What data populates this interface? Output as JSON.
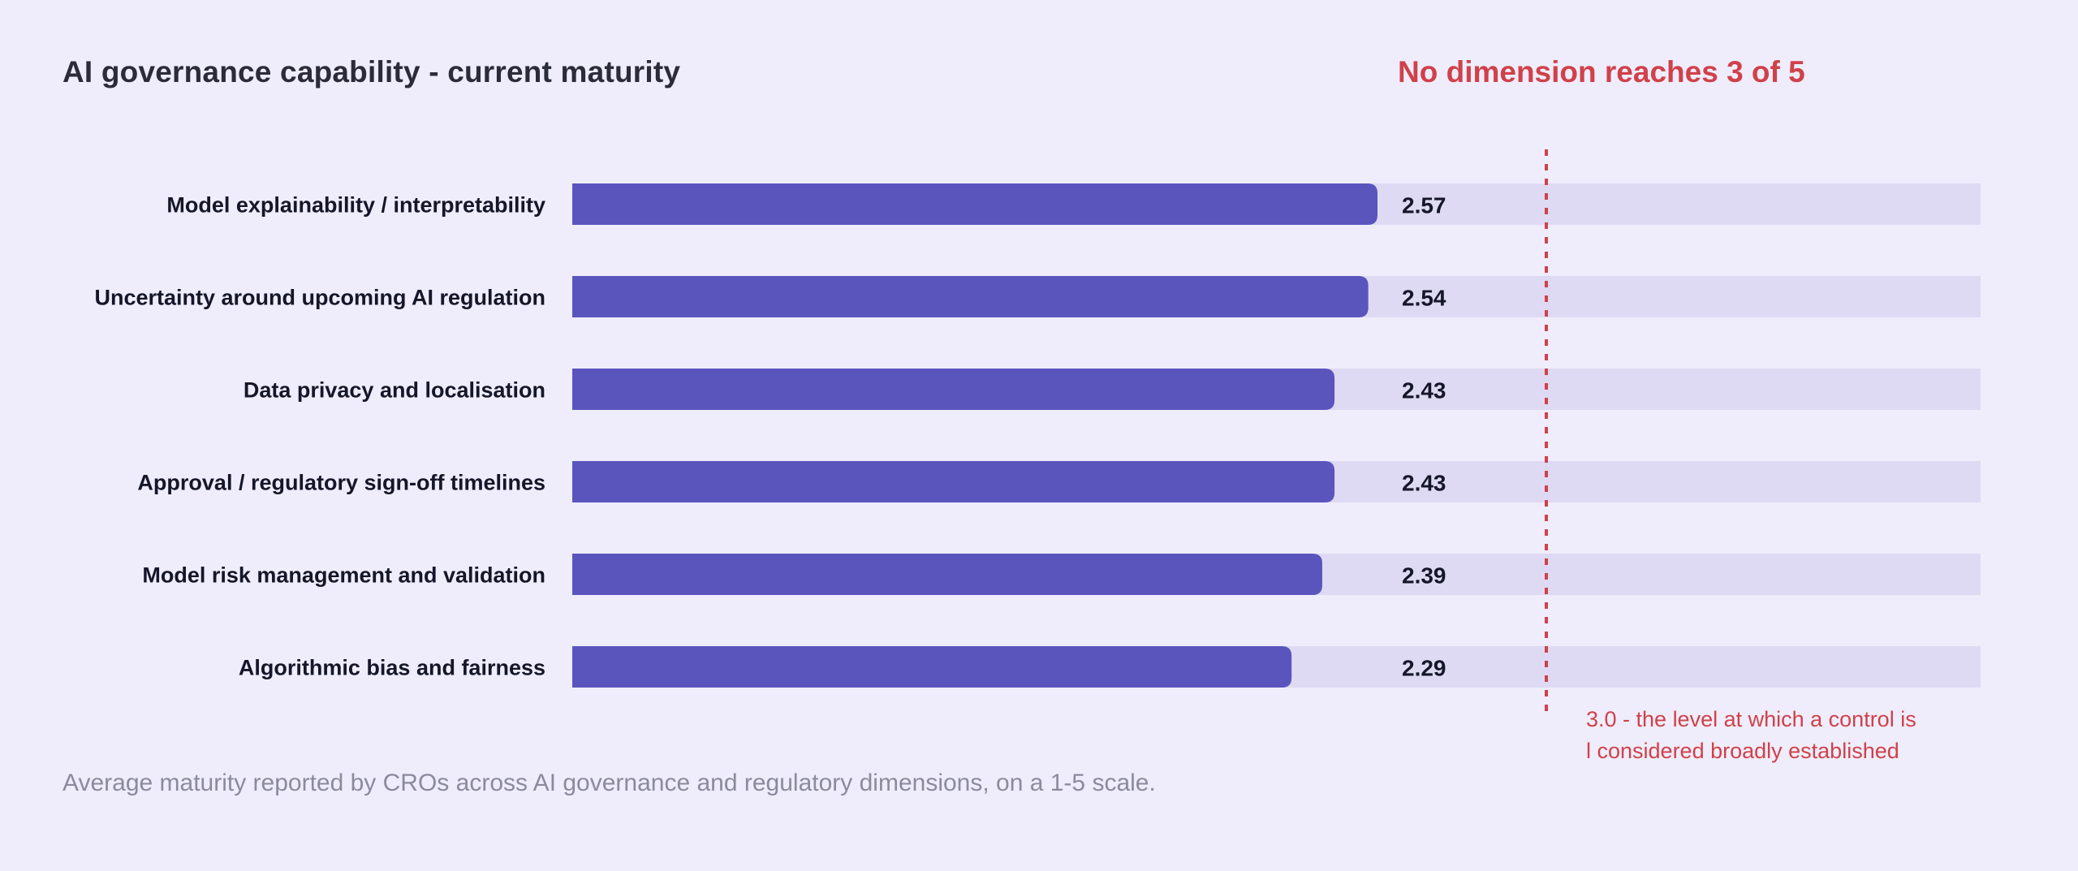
{
  "title": "AI governance capability - current maturity",
  "headline": "No dimension reaches 3 of 5",
  "caption": "Average maturity reported by CROs across AI governance and regulatory dimensions, on a 1-5 scale.",
  "colors": {
    "bar": "#5a55bd",
    "track": "#dedaf3",
    "background": "#efedfb",
    "reference": "#d0414a"
  },
  "chart_data": {
    "type": "bar",
    "orientation": "horizontal",
    "categories": [
      "Model explainability / interpretability",
      "Uncertainty around upcoming AI regulation",
      "Data privacy and localisation",
      "Approval / regulatory sign-off timelines",
      "Model risk management and validation",
      "Algorithmic bias and fairness"
    ],
    "values": [
      2.57,
      2.54,
      2.43,
      2.43,
      2.39,
      2.29
    ],
    "value_labels": [
      "2.57",
      "2.54",
      "2.43",
      "2.43",
      "2.39",
      "2.29"
    ],
    "xlim": [
      0,
      5
    ],
    "reference_line": {
      "value": 3.0,
      "label_lines": [
        "3.0 - the level at which a control is",
        "l considered broadly established"
      ]
    },
    "grid": false
  }
}
